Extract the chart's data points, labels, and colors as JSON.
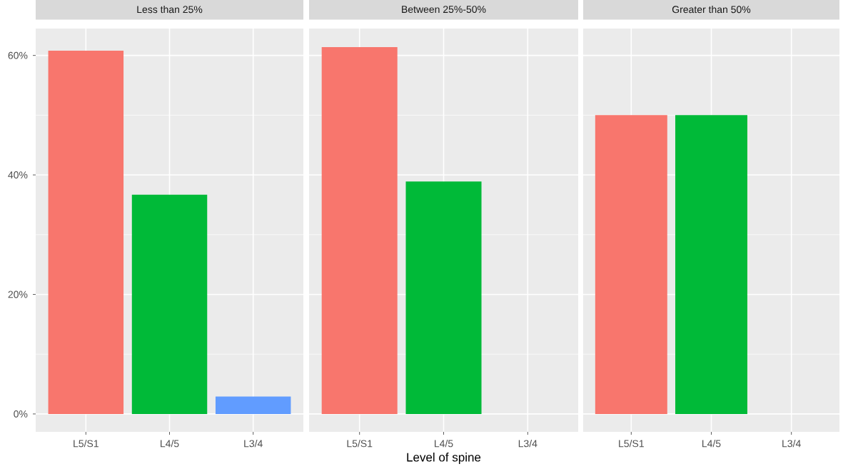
{
  "chart_data": [
    {
      "type": "bar",
      "title": "Less than 25%",
      "categories": [
        "L5/S1",
        "L4/5",
        "L3/4"
      ],
      "values": [
        60.8,
        36.7,
        2.9
      ],
      "colors": [
        "#f8766d",
        "#00ba38",
        "#619cff"
      ],
      "ylim": [
        -3,
        64.5
      ],
      "yticks": [
        {
          "value": 0,
          "label": "0%"
        },
        {
          "value": 20,
          "label": "20%"
        },
        {
          "value": 40,
          "label": "40%"
        },
        {
          "value": 60,
          "label": "60%"
        }
      ],
      "grid": true
    },
    {
      "type": "bar",
      "title": "Between 25%-50%",
      "xlabel": "Level of spine",
      "categories": [
        "L5/S1",
        "L4/5",
        "L3/4"
      ],
      "values": [
        61.4,
        38.9,
        null
      ],
      "colors": [
        "#f8766d",
        "#00ba38",
        "#619cff"
      ],
      "ylim": [
        -3,
        64.5
      ],
      "yticks": [
        {
          "value": 0,
          "label": null
        },
        {
          "value": 20,
          "label": null
        },
        {
          "value": 40,
          "label": null
        },
        {
          "value": 60,
          "label": null
        }
      ],
      "grid": true,
      "tick_labels": "x"
    },
    {
      "type": "bar",
      "title": "Greater than 50%",
      "categories": [
        "L5/S1",
        "L4/5",
        "L3/4"
      ],
      "values": [
        50,
        50,
        null
      ],
      "colors": [
        "#f8766d",
        "#00ba38",
        "#619cff"
      ],
      "ylim": [
        -3,
        64.5
      ],
      "yticks": [
        {
          "value": 0,
          "label": null
        },
        {
          "value": 20,
          "label": null
        },
        {
          "value": 40,
          "label": null
        },
        {
          "value": 60,
          "label": null
        }
      ],
      "grid": true,
      "tick_labels": "x"
    }
  ]
}
